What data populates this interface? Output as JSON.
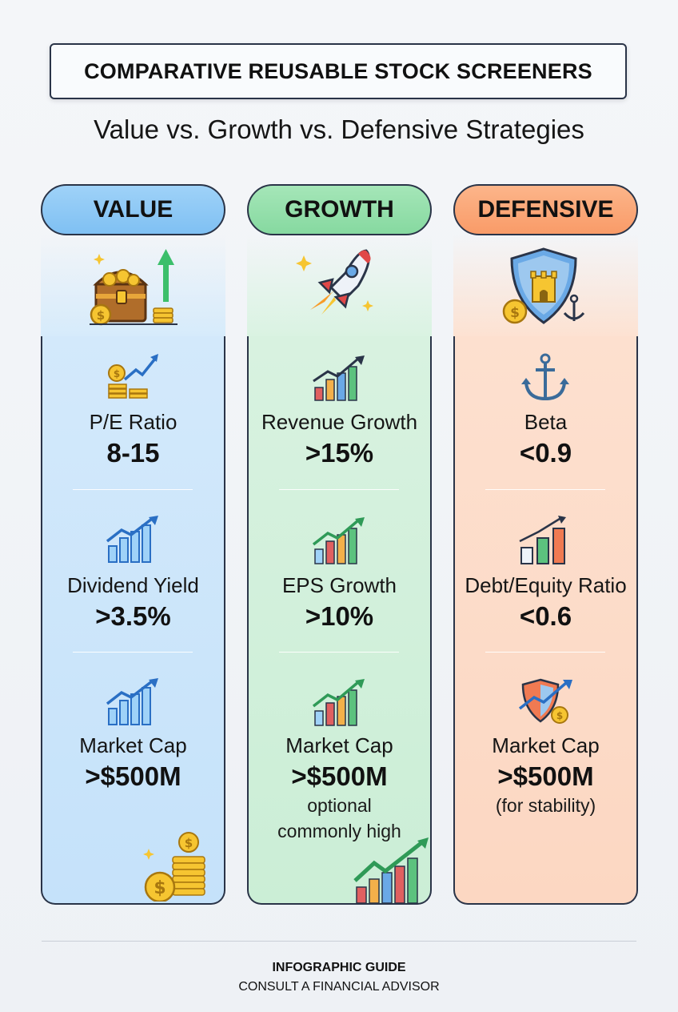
{
  "title": "COMPARATIVE REUSABLE STOCK SCREENERS",
  "subtitle": "Value vs. Growth vs. Defensive Strategies",
  "columns": [
    {
      "name": "VALUE",
      "metrics": [
        {
          "label": "P/E Ratio",
          "value": "8-15"
        },
        {
          "label": "Dividend Yield",
          "value": ">3.5%"
        },
        {
          "label": "Market Cap",
          "value": ">$500M"
        }
      ]
    },
    {
      "name": "GROWTH",
      "metrics": [
        {
          "label": "Revenue Growth",
          "value": ">15%"
        },
        {
          "label": "EPS Growth",
          "value": ">10%"
        },
        {
          "label": "Market Cap",
          "value": ">$500M",
          "note1": "optional",
          "note2": "commonly high"
        }
      ]
    },
    {
      "name": "DEFENSIVE",
      "metrics": [
        {
          "label": "Beta",
          "value": "<0.9"
        },
        {
          "label": "Debt/Equity Ratio",
          "value": "<0.6"
        },
        {
          "label": "Market Cap",
          "value": ">$500M",
          "note1": "(for stability)"
        }
      ]
    }
  ],
  "footer": {
    "line1": "INFOGRAPHIC GUIDE",
    "line2": "CONSULT A FINANCIAL ADVISOR"
  },
  "colors": {
    "value_accent": "#7fc0f3",
    "growth_accent": "#86d9a0",
    "defensive_accent": "#f99b68",
    "outline": "#2a3448"
  },
  "icons": {
    "value_hero": "treasure-chest-icon",
    "growth_hero": "rocket-icon",
    "defensive_hero": "shield-castle-icon"
  }
}
